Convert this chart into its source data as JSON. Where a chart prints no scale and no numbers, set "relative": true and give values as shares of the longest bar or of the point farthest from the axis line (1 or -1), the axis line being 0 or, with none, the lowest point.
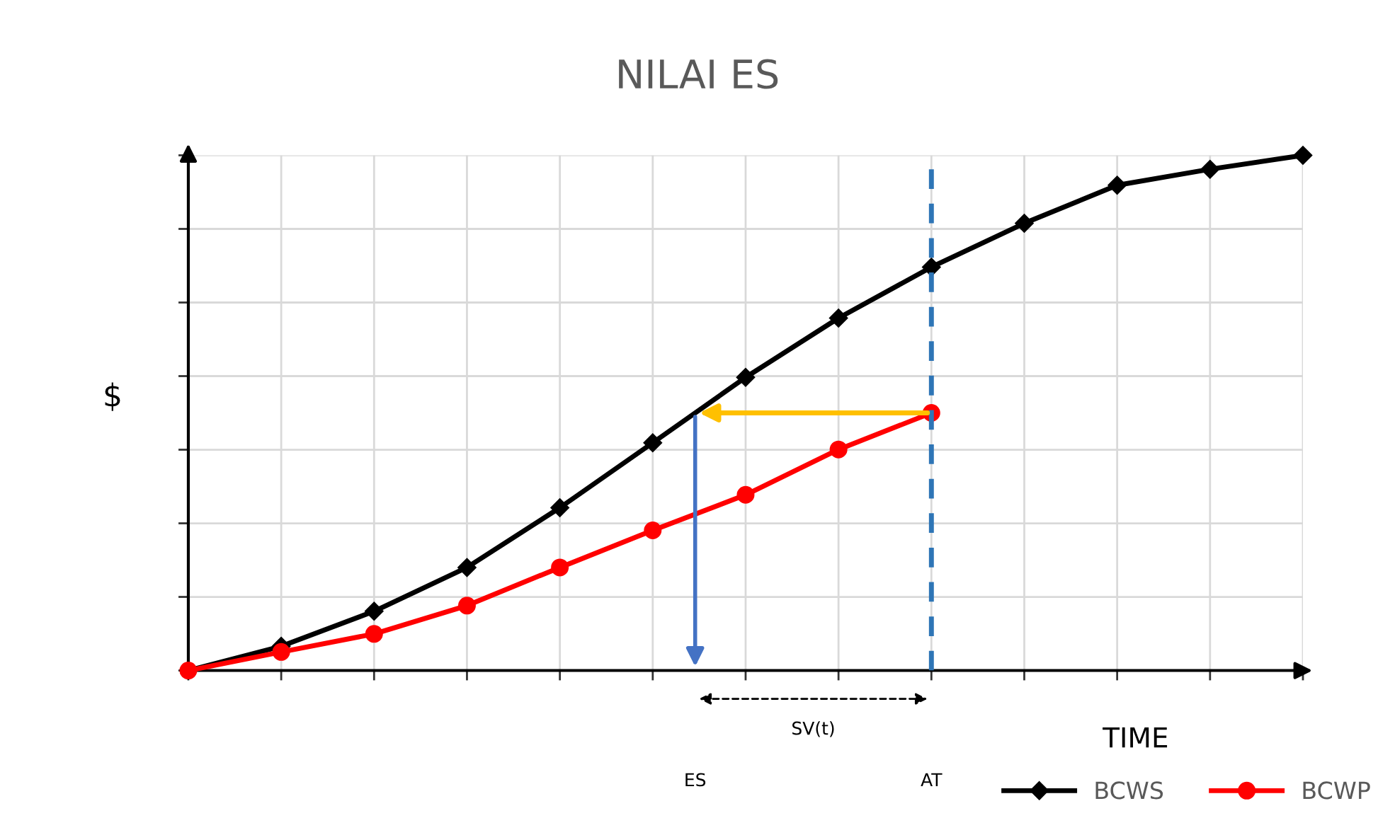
{
  "chart_data": {
    "type": "line",
    "title": "NILAI ES",
    "xlabel": "TIME",
    "ylabel": "$",
    "relative": true,
    "grid": true,
    "legend": "bottom right",
    "categories": [
      null,
      null,
      null,
      null,
      null,
      null,
      null,
      null,
      null,
      null,
      null,
      null,
      null
    ],
    "series": [
      {
        "name": "BCWS",
        "color": "#000000",
        "marker": "diamond",
        "values": [
          0,
          0.047,
          0.115,
          0.2,
          0.316,
          0.442,
          0.569,
          0.684,
          0.783,
          0.868,
          0.942,
          0.973,
          1
        ]
      },
      {
        "name": "BCWP",
        "color": "#ff0000",
        "marker": "circle",
        "values": [
          0,
          0.036,
          0.071,
          0.126,
          0.2,
          0.272,
          0.341,
          0.429,
          0.5,
          null,
          null,
          null,
          null
        ]
      }
    ],
    "annotations": [
      "ES",
      "SV(t)",
      "AT"
    ]
  }
}
